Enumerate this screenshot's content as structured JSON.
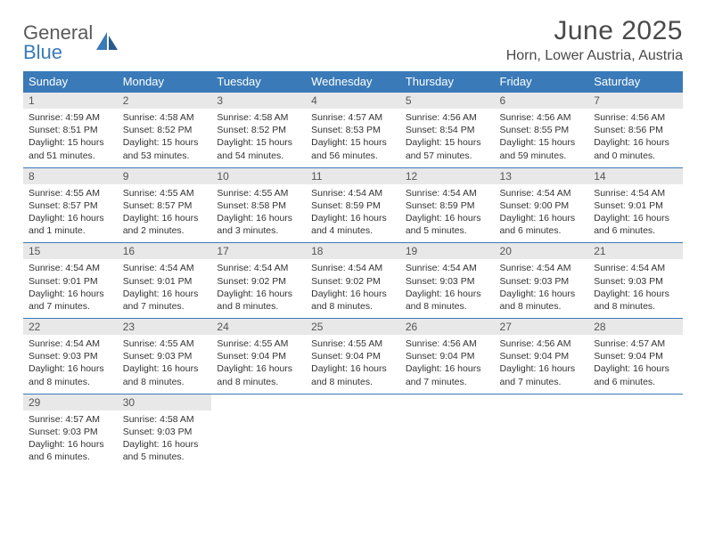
{
  "logo": {
    "line1": "General",
    "line2": "Blue"
  },
  "title": "June 2025",
  "location": "Horn, Lower Austria, Austria",
  "colors": {
    "header_bg": "#3a7ab8",
    "header_fg": "#ffffff",
    "daynum_bg": "#e8e8e8",
    "text": "#333333",
    "rule": "#3a7ab8",
    "page_bg": "#ffffff"
  },
  "typography": {
    "title_fontsize": 30,
    "location_fontsize": 16,
    "dow_fontsize": 13,
    "daynum_fontsize": 12,
    "cell_fontsize": 10.5
  },
  "layout": {
    "columns": 7,
    "weeks": 5
  },
  "days_of_week": [
    "Sunday",
    "Monday",
    "Tuesday",
    "Wednesday",
    "Thursday",
    "Friday",
    "Saturday"
  ],
  "weeks": [
    [
      {
        "num": "1",
        "sunrise": "Sunrise: 4:59 AM",
        "sunset": "Sunset: 8:51 PM",
        "daylight": "Daylight: 15 hours and 51 minutes."
      },
      {
        "num": "2",
        "sunrise": "Sunrise: 4:58 AM",
        "sunset": "Sunset: 8:52 PM",
        "daylight": "Daylight: 15 hours and 53 minutes."
      },
      {
        "num": "3",
        "sunrise": "Sunrise: 4:58 AM",
        "sunset": "Sunset: 8:52 PM",
        "daylight": "Daylight: 15 hours and 54 minutes."
      },
      {
        "num": "4",
        "sunrise": "Sunrise: 4:57 AM",
        "sunset": "Sunset: 8:53 PM",
        "daylight": "Daylight: 15 hours and 56 minutes."
      },
      {
        "num": "5",
        "sunrise": "Sunrise: 4:56 AM",
        "sunset": "Sunset: 8:54 PM",
        "daylight": "Daylight: 15 hours and 57 minutes."
      },
      {
        "num": "6",
        "sunrise": "Sunrise: 4:56 AM",
        "sunset": "Sunset: 8:55 PM",
        "daylight": "Daylight: 15 hours and 59 minutes."
      },
      {
        "num": "7",
        "sunrise": "Sunrise: 4:56 AM",
        "sunset": "Sunset: 8:56 PM",
        "daylight": "Daylight: 16 hours and 0 minutes."
      }
    ],
    [
      {
        "num": "8",
        "sunrise": "Sunrise: 4:55 AM",
        "sunset": "Sunset: 8:57 PM",
        "daylight": "Daylight: 16 hours and 1 minute."
      },
      {
        "num": "9",
        "sunrise": "Sunrise: 4:55 AM",
        "sunset": "Sunset: 8:57 PM",
        "daylight": "Daylight: 16 hours and 2 minutes."
      },
      {
        "num": "10",
        "sunrise": "Sunrise: 4:55 AM",
        "sunset": "Sunset: 8:58 PM",
        "daylight": "Daylight: 16 hours and 3 minutes."
      },
      {
        "num": "11",
        "sunrise": "Sunrise: 4:54 AM",
        "sunset": "Sunset: 8:59 PM",
        "daylight": "Daylight: 16 hours and 4 minutes."
      },
      {
        "num": "12",
        "sunrise": "Sunrise: 4:54 AM",
        "sunset": "Sunset: 8:59 PM",
        "daylight": "Daylight: 16 hours and 5 minutes."
      },
      {
        "num": "13",
        "sunrise": "Sunrise: 4:54 AM",
        "sunset": "Sunset: 9:00 PM",
        "daylight": "Daylight: 16 hours and 6 minutes."
      },
      {
        "num": "14",
        "sunrise": "Sunrise: 4:54 AM",
        "sunset": "Sunset: 9:01 PM",
        "daylight": "Daylight: 16 hours and 6 minutes."
      }
    ],
    [
      {
        "num": "15",
        "sunrise": "Sunrise: 4:54 AM",
        "sunset": "Sunset: 9:01 PM",
        "daylight": "Daylight: 16 hours and 7 minutes."
      },
      {
        "num": "16",
        "sunrise": "Sunrise: 4:54 AM",
        "sunset": "Sunset: 9:01 PM",
        "daylight": "Daylight: 16 hours and 7 minutes."
      },
      {
        "num": "17",
        "sunrise": "Sunrise: 4:54 AM",
        "sunset": "Sunset: 9:02 PM",
        "daylight": "Daylight: 16 hours and 8 minutes."
      },
      {
        "num": "18",
        "sunrise": "Sunrise: 4:54 AM",
        "sunset": "Sunset: 9:02 PM",
        "daylight": "Daylight: 16 hours and 8 minutes."
      },
      {
        "num": "19",
        "sunrise": "Sunrise: 4:54 AM",
        "sunset": "Sunset: 9:03 PM",
        "daylight": "Daylight: 16 hours and 8 minutes."
      },
      {
        "num": "20",
        "sunrise": "Sunrise: 4:54 AM",
        "sunset": "Sunset: 9:03 PM",
        "daylight": "Daylight: 16 hours and 8 minutes."
      },
      {
        "num": "21",
        "sunrise": "Sunrise: 4:54 AM",
        "sunset": "Sunset: 9:03 PM",
        "daylight": "Daylight: 16 hours and 8 minutes."
      }
    ],
    [
      {
        "num": "22",
        "sunrise": "Sunrise: 4:54 AM",
        "sunset": "Sunset: 9:03 PM",
        "daylight": "Daylight: 16 hours and 8 minutes."
      },
      {
        "num": "23",
        "sunrise": "Sunrise: 4:55 AM",
        "sunset": "Sunset: 9:03 PM",
        "daylight": "Daylight: 16 hours and 8 minutes."
      },
      {
        "num": "24",
        "sunrise": "Sunrise: 4:55 AM",
        "sunset": "Sunset: 9:04 PM",
        "daylight": "Daylight: 16 hours and 8 minutes."
      },
      {
        "num": "25",
        "sunrise": "Sunrise: 4:55 AM",
        "sunset": "Sunset: 9:04 PM",
        "daylight": "Daylight: 16 hours and 8 minutes."
      },
      {
        "num": "26",
        "sunrise": "Sunrise: 4:56 AM",
        "sunset": "Sunset: 9:04 PM",
        "daylight": "Daylight: 16 hours and 7 minutes."
      },
      {
        "num": "27",
        "sunrise": "Sunrise: 4:56 AM",
        "sunset": "Sunset: 9:04 PM",
        "daylight": "Daylight: 16 hours and 7 minutes."
      },
      {
        "num": "28",
        "sunrise": "Sunrise: 4:57 AM",
        "sunset": "Sunset: 9:04 PM",
        "daylight": "Daylight: 16 hours and 6 minutes."
      }
    ],
    [
      {
        "num": "29",
        "sunrise": "Sunrise: 4:57 AM",
        "sunset": "Sunset: 9:03 PM",
        "daylight": "Daylight: 16 hours and 6 minutes."
      },
      {
        "num": "30",
        "sunrise": "Sunrise: 4:58 AM",
        "sunset": "Sunset: 9:03 PM",
        "daylight": "Daylight: 16 hours and 5 minutes."
      },
      null,
      null,
      null,
      null,
      null
    ]
  ]
}
